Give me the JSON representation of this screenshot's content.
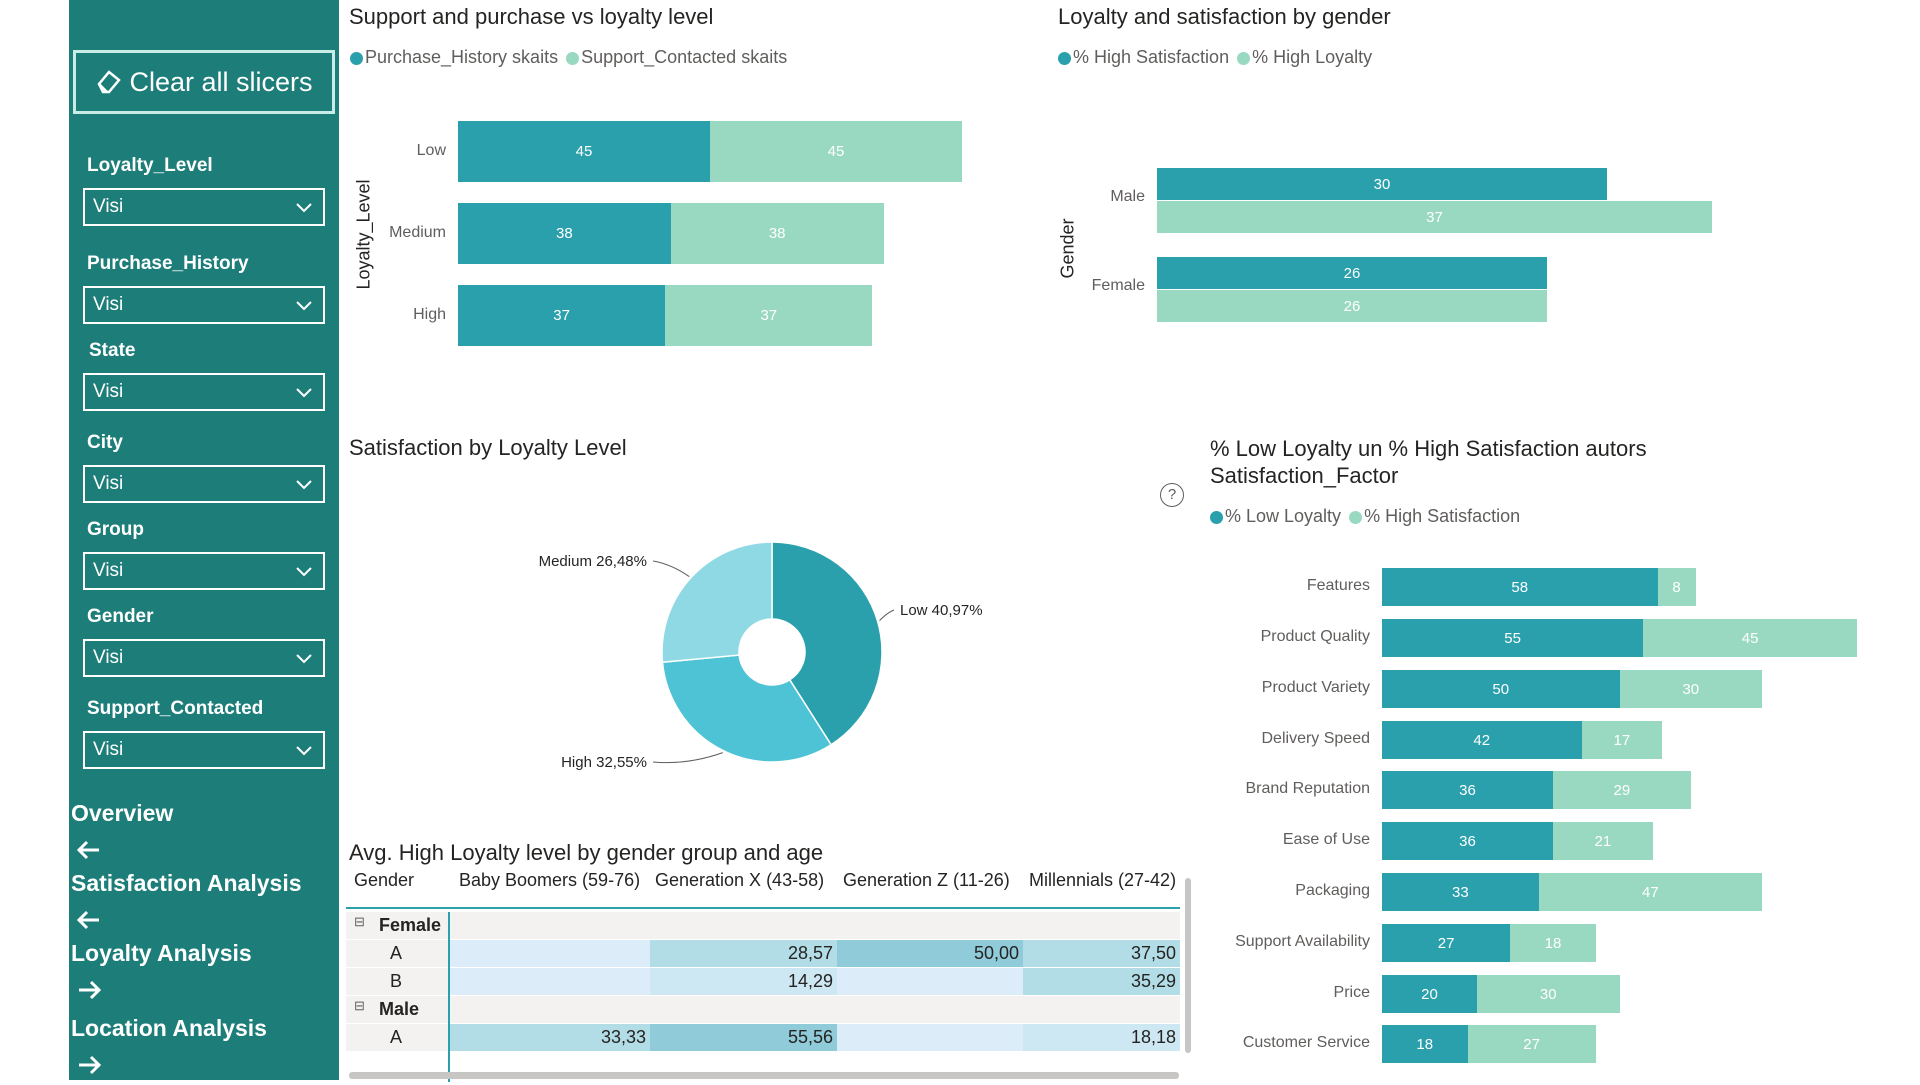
{
  "sidebar": {
    "clear_label": "Clear all slicers",
    "slicers": [
      {
        "label": "Loyalty_Level",
        "value": "Visi"
      },
      {
        "label": "Purchase_History",
        "value": "Visi"
      },
      {
        "label": "State",
        "value": "Visi"
      },
      {
        "label": "City",
        "value": "Visi"
      },
      {
        "label": "Group",
        "value": "Visi"
      },
      {
        "label": "Gender",
        "value": "Visi"
      },
      {
        "label": "Support_Contacted",
        "value": "Visi"
      }
    ],
    "nav": [
      {
        "label": "Overview",
        "arrow": "left"
      },
      {
        "label": "Satisfaction Analysis",
        "arrow": "left"
      },
      {
        "label": "Loyalty Analysis",
        "arrow": "right"
      },
      {
        "label": "Location Analysis",
        "arrow": "right"
      }
    ]
  },
  "colors": {
    "dark": "#2aa0ad",
    "light": "#99d9c2",
    "pie_mid": "#4fc3d6",
    "pie_light": "#8fd9e5",
    "sidebar": "#1d7d79"
  },
  "chart1": {
    "title": "Support and purchase vs loyalty level",
    "legend": [
      "Purchase_History skaits",
      "Support_Contacted skaits"
    ],
    "ylabel": "Loyalty_Level",
    "chart_data": {
      "type": "bar",
      "categories": [
        "Low",
        "Medium",
        "High"
      ],
      "series": [
        {
          "name": "Purchase_History skaits",
          "values": [
            45,
            38,
            37
          ]
        },
        {
          "name": "Support_Contacted skaits",
          "values": [
            45,
            38,
            37
          ]
        }
      ]
    }
  },
  "chart2": {
    "title": "Loyalty and satisfaction by gender",
    "legend": [
      "% High Satisfaction",
      "% High Loyalty"
    ],
    "ylabel": "Gender",
    "chart_data": {
      "type": "bar",
      "categories": [
        "Male",
        "Female"
      ],
      "series": [
        {
          "name": "% High Satisfaction",
          "values": [
            30,
            26
          ]
        },
        {
          "name": "% High Loyalty",
          "values": [
            37,
            26
          ]
        }
      ]
    }
  },
  "chart3": {
    "title": "Satisfaction by Loyalty Level",
    "chart_data": {
      "type": "pie",
      "slices": [
        {
          "label": "Low",
          "value": 40.97,
          "text": "Low 40,97%"
        },
        {
          "label": "High",
          "value": 32.55,
          "text": "High 32,55%"
        },
        {
          "label": "Medium",
          "value": 26.48,
          "text": "Medium 26,48%"
        }
      ]
    }
  },
  "chart4": {
    "title_line1": "% Low Loyalty un % High Satisfaction autors",
    "title_line2": "Satisfaction_Factor",
    "help_icon": "?",
    "legend": [
      "% Low Loyalty",
      "% High Satisfaction"
    ],
    "chart_data": {
      "type": "bar",
      "categories": [
        "Features",
        "Product Quality",
        "Product Variety",
        "Delivery Speed",
        "Brand Reputation",
        "Ease of Use",
        "Packaging",
        "Support Availability",
        "Price",
        "Customer Service"
      ],
      "series": [
        {
          "name": "% Low Loyalty",
          "values": [
            58,
            55,
            50,
            42,
            36,
            36,
            33,
            27,
            20,
            18
          ]
        },
        {
          "name": "% High Satisfaction",
          "values": [
            8,
            45,
            30,
            17,
            29,
            21,
            47,
            18,
            30,
            27
          ]
        }
      ]
    }
  },
  "table": {
    "title": "Avg. High Loyalty level by gender group and age",
    "headers": [
      "Gender",
      "Baby Boomers (59-76)",
      "Generation X (43-58)",
      "Generation Z (11-26)",
      "Millennials (27-42)"
    ],
    "groups": [
      {
        "name": "Female",
        "rows": [
          {
            "label": "A",
            "values": [
              "",
              "28,57",
              "50,00",
              "37,50"
            ]
          },
          {
            "label": "B",
            "values": [
              "",
              "14,29",
              "",
              "35,29"
            ]
          }
        ]
      },
      {
        "name": "Male",
        "rows": [
          {
            "label": "A",
            "values": [
              "33,33",
              "55,56",
              "",
              "18,18"
            ]
          }
        ]
      }
    ]
  }
}
